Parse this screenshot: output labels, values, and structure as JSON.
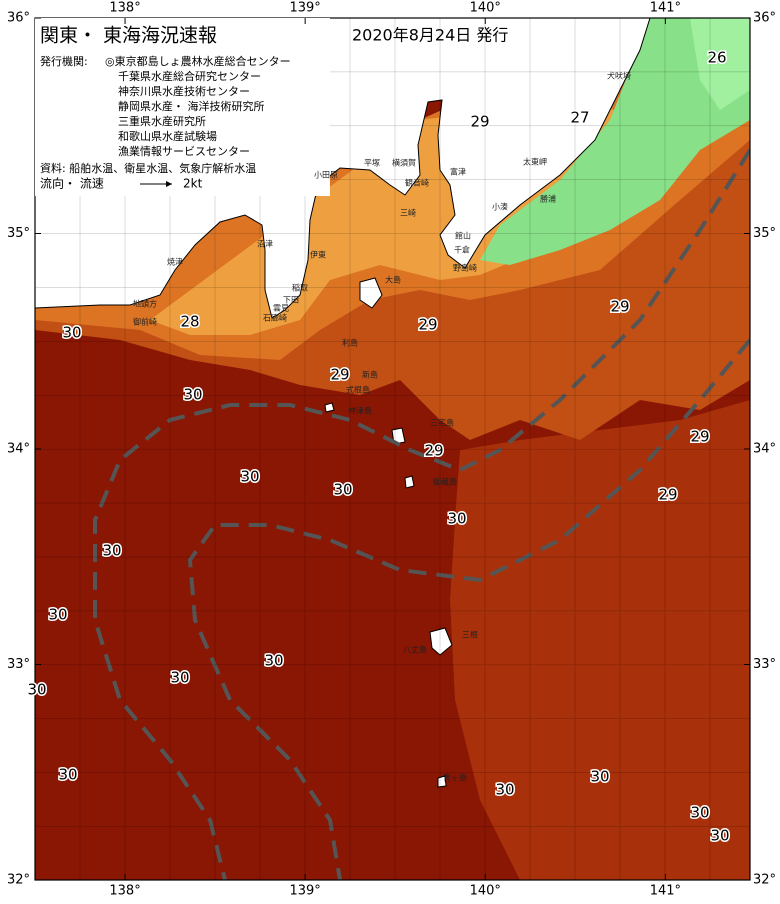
{
  "header": {
    "title": "関東・ 東海海況速報",
    "date": "2020年8月24日 発行"
  },
  "issuers": {
    "label": "発行機関:",
    "list": [
      "◎東京都島しょ農林水産総合センター",
      "千葉県水産総合研究センター",
      "神奈川県水産技術センター",
      "静岡県水産・ 海洋技術研究所",
      "三重県水産研究所",
      "和歌山県水産試験場",
      "漁業情報サービスセンター"
    ]
  },
  "sources": "資料: 船舶水温、衛星水温、気象庁解析水温",
  "legend": {
    "label": "流向・ 流速",
    "speed": "2kt"
  },
  "axes": {
    "lon_ticks": [
      {
        "value": 138,
        "label": "138°"
      },
      {
        "value": 139,
        "label": "139°"
      },
      {
        "value": 140,
        "label": "140°"
      },
      {
        "value": 141,
        "label": "141°"
      }
    ],
    "lat_ticks": [
      {
        "value": 36,
        "label": "36°"
      },
      {
        "value": 35,
        "label": "35°"
      },
      {
        "value": 34,
        "label": "34°"
      },
      {
        "value": 33,
        "label": "33°"
      },
      {
        "value": 32,
        "label": "32°"
      }
    ]
  },
  "temperature_labels": [
    26,
    27,
    29,
    28,
    29,
    29,
    29,
    29,
    29,
    29,
    30,
    30,
    30,
    30,
    30,
    30,
    30,
    30,
    30,
    30,
    30,
    30,
    30,
    30,
    30
  ],
  "place_names": [
    "犬吠埼",
    "太東岬",
    "勝浦",
    "小湊",
    "館山",
    "千倉",
    "野島崎",
    "富津",
    "観音崎",
    "横須賀",
    "三崎",
    "平塚",
    "小田原",
    "伊東",
    "大島",
    "稲取",
    "下田",
    "雲見",
    "石廊崎",
    "沼津",
    "焼津",
    "地頭方",
    "御前崎",
    "利島",
    "新島",
    "式根島",
    "神津島",
    "三宅島",
    "御蔵島",
    "八丈島",
    "三根",
    "青ヶ島"
  ]
}
